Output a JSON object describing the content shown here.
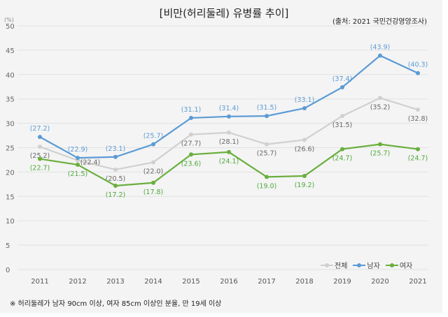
{
  "title": "[비만(허리둘레) 유병률 추이]",
  "source": "(출처: 2021 국민건강영양조사)",
  "note": "※ 허리둘레가 남자 90cm 이상, 여자 85cm 이상인 분율, 만 19세 이상",
  "chart_data": {
    "type": "line",
    "title": "[비만(허리둘레) 유병률 추이]",
    "ylabel": "(%)",
    "ylim": [
      0,
      50
    ],
    "yticks": [
      0,
      5,
      10,
      15,
      20,
      25,
      30,
      35,
      40,
      45,
      50
    ],
    "grid": true,
    "legend": "bottom-right",
    "categories": [
      "2011",
      "2012",
      "2013",
      "2014",
      "2015",
      "2016",
      "2017",
      "2018",
      "2019",
      "2020",
      "2021"
    ],
    "series": [
      {
        "name": "전체",
        "color": "#d0d0d0",
        "label_color": "#666666",
        "values": [
          25.2,
          22.4,
          20.5,
          22.0,
          27.7,
          28.1,
          25.7,
          26.6,
          31.5,
          35.2,
          32.8
        ]
      },
      {
        "name": "남자",
        "color": "#5b9bd5",
        "label_color": "#5b9bd5",
        "values": [
          27.2,
          22.9,
          23.1,
          25.7,
          31.1,
          31.4,
          31.5,
          33.1,
          37.4,
          43.9,
          40.3
        ]
      },
      {
        "name": "여자",
        "color": "#6aaf3d",
        "label_color": "#4fa83a",
        "values": [
          22.7,
          21.5,
          17.2,
          17.8,
          23.6,
          24.1,
          19.0,
          19.2,
          24.7,
          25.7,
          24.7
        ]
      }
    ]
  }
}
